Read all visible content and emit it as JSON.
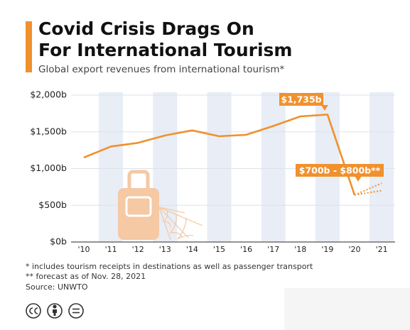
{
  "chart_data": {
    "type": "line",
    "title": [
      "Covid Crisis Drags On",
      "For International Tourism"
    ],
    "subtitle": "Global export revenues from international tourism*",
    "categories": [
      "'10",
      "'11",
      "'12",
      "'13",
      "'14",
      "'15",
      "'16",
      "'17",
      "'18",
      "'19",
      "'20",
      "'21"
    ],
    "series": [
      {
        "color": "#f0912d",
        "dashed": false,
        "values": [
          1150,
          1300,
          1350,
          1450,
          1520,
          1440,
          1460,
          1580,
          1710,
          1735,
          640,
          null
        ]
      },
      {
        "color": "#f0912d",
        "dashed": true,
        "values": [
          null,
          null,
          null,
          null,
          null,
          null,
          null,
          null,
          null,
          null,
          640,
          700
        ]
      },
      {
        "color": "#f0912d",
        "dashed": true,
        "values": [
          null,
          null,
          null,
          null,
          null,
          null,
          null,
          null,
          null,
          null,
          640,
          800
        ]
      }
    ],
    "ylim": [
      0,
      2000
    ],
    "yticks": [
      {
        "value": 0,
        "label": "$0b"
      },
      {
        "value": 500,
        "label": "$500b"
      },
      {
        "value": 1000,
        "label": "$1,000b"
      },
      {
        "value": 1500,
        "label": "$1,500b"
      },
      {
        "value": 2000,
        "label": "$2,000b"
      }
    ],
    "grid": true,
    "annotations": [
      "$1,735b",
      "$700b - $800b**"
    ],
    "footnotes": [
      "*   includes tourism receipts in destinations as well as passenger transport",
      "** forecast as of Nov. 28, 2021",
      "Source: UNWTO"
    ]
  }
}
